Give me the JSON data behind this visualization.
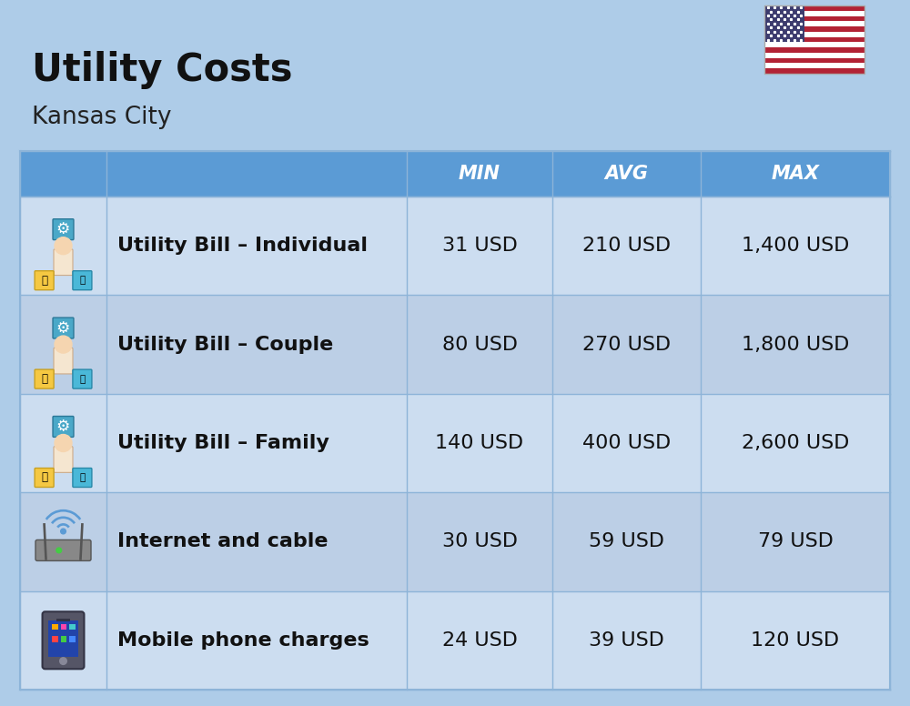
{
  "title": "Utility Costs",
  "subtitle": "Kansas City",
  "background_color": "#aecce8",
  "header_color": "#5b9bd5",
  "header_text_color": "#ffffff",
  "row_color_light": "#ccddf0",
  "row_color_dark": "#bccfe6",
  "border_color": "#8db4d8",
  "col_headers": [
    "MIN",
    "AVG",
    "MAX"
  ],
  "rows": [
    {
      "label": "Utility Bill – Individual",
      "min": "31 USD",
      "avg": "210 USD",
      "max": "1,400 USD",
      "icon": "utility"
    },
    {
      "label": "Utility Bill – Couple",
      "min": "80 USD",
      "avg": "270 USD",
      "max": "1,800 USD",
      "icon": "utility"
    },
    {
      "label": "Utility Bill – Family",
      "min": "140 USD",
      "avg": "400 USD",
      "max": "2,600 USD",
      "icon": "utility"
    },
    {
      "label": "Internet and cable",
      "min": "30 USD",
      "avg": "59 USD",
      "max": "79 USD",
      "icon": "internet"
    },
    {
      "label": "Mobile phone charges",
      "min": "24 USD",
      "avg": "39 USD",
      "max": "120 USD",
      "icon": "mobile"
    }
  ],
  "title_fontsize": 30,
  "subtitle_fontsize": 19,
  "header_fontsize": 15,
  "cell_fontsize": 16,
  "label_fontsize": 16
}
